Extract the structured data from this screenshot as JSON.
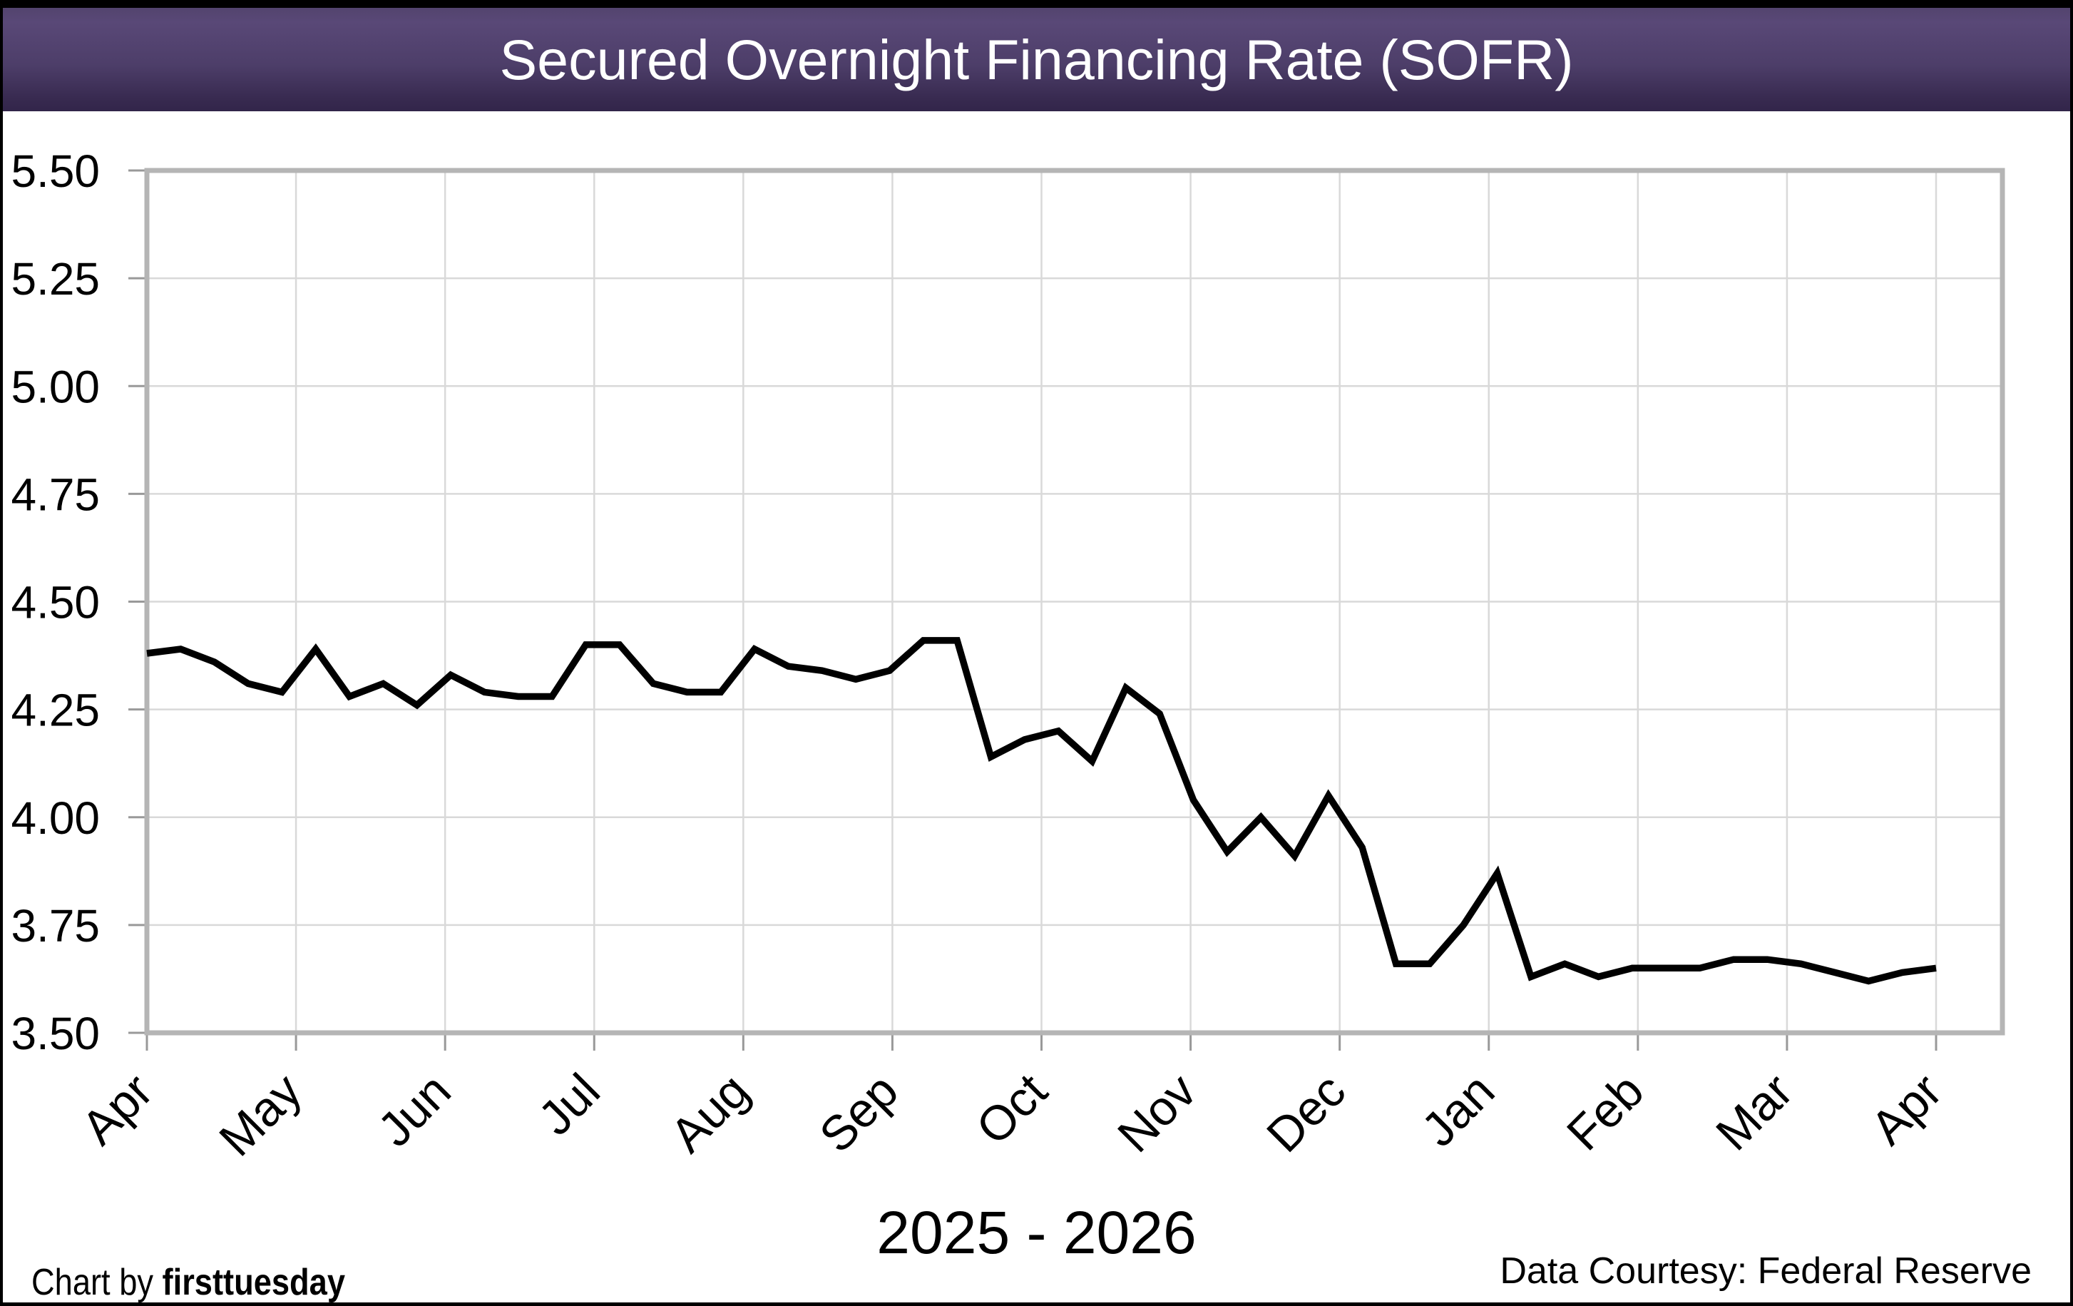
{
  "chart_data": {
    "type": "line",
    "title": "Secured Overnight Financing Rate (SOFR)",
    "x_axis_title": "2025 - 2026",
    "x_tick_labels": [
      "Apr",
      "May",
      "Jun",
      "Jul",
      "Aug",
      "Sep",
      "Oct",
      "Nov",
      "Dec",
      "Jan",
      "Feb",
      "Mar",
      "Apr"
    ],
    "y_tick_labels": [
      "5.50",
      "5.25",
      "5.00",
      "4.75",
      "4.50",
      "4.25",
      "4.00",
      "3.75",
      "3.50"
    ],
    "ylim": [
      3.5,
      5.5
    ],
    "y_step": 0.25,
    "grid": true,
    "legend_position": "none",
    "line_color": "#000000",
    "series": [
      {
        "name": "SOFR",
        "frequency": "weekly",
        "values": [
          4.38,
          4.39,
          4.36,
          4.31,
          4.29,
          4.39,
          4.28,
          4.31,
          4.26,
          4.33,
          4.29,
          4.28,
          4.28,
          4.4,
          4.4,
          4.31,
          4.29,
          4.29,
          4.39,
          4.35,
          4.34,
          4.32,
          4.34,
          4.41,
          4.41,
          4.14,
          4.18,
          4.2,
          4.13,
          4.3,
          4.24,
          4.04,
          3.92,
          4.0,
          3.91,
          4.05,
          3.93,
          3.66,
          3.66,
          3.75,
          3.87,
          3.63,
          3.66,
          3.63,
          3.65,
          3.65,
          3.65,
          3.67,
          3.67,
          3.66,
          3.64,
          3.62,
          3.64,
          3.65
        ]
      }
    ]
  },
  "footer": {
    "credit_prefix": "Chart by ",
    "credit_brand": "firsttuesday",
    "data_courtesy": "Data Courtesy: Federal Reserve"
  },
  "theme": {
    "header_gradient_top": "#584775",
    "header_gradient_bottom": "#32254a",
    "title_text_color": "#ffffff",
    "frame_color": "#b5b5b5",
    "grid_color": "#d9d9d9",
    "tick_color": "#999999",
    "line_color": "#000000",
    "outer_border_color": "#000000"
  }
}
